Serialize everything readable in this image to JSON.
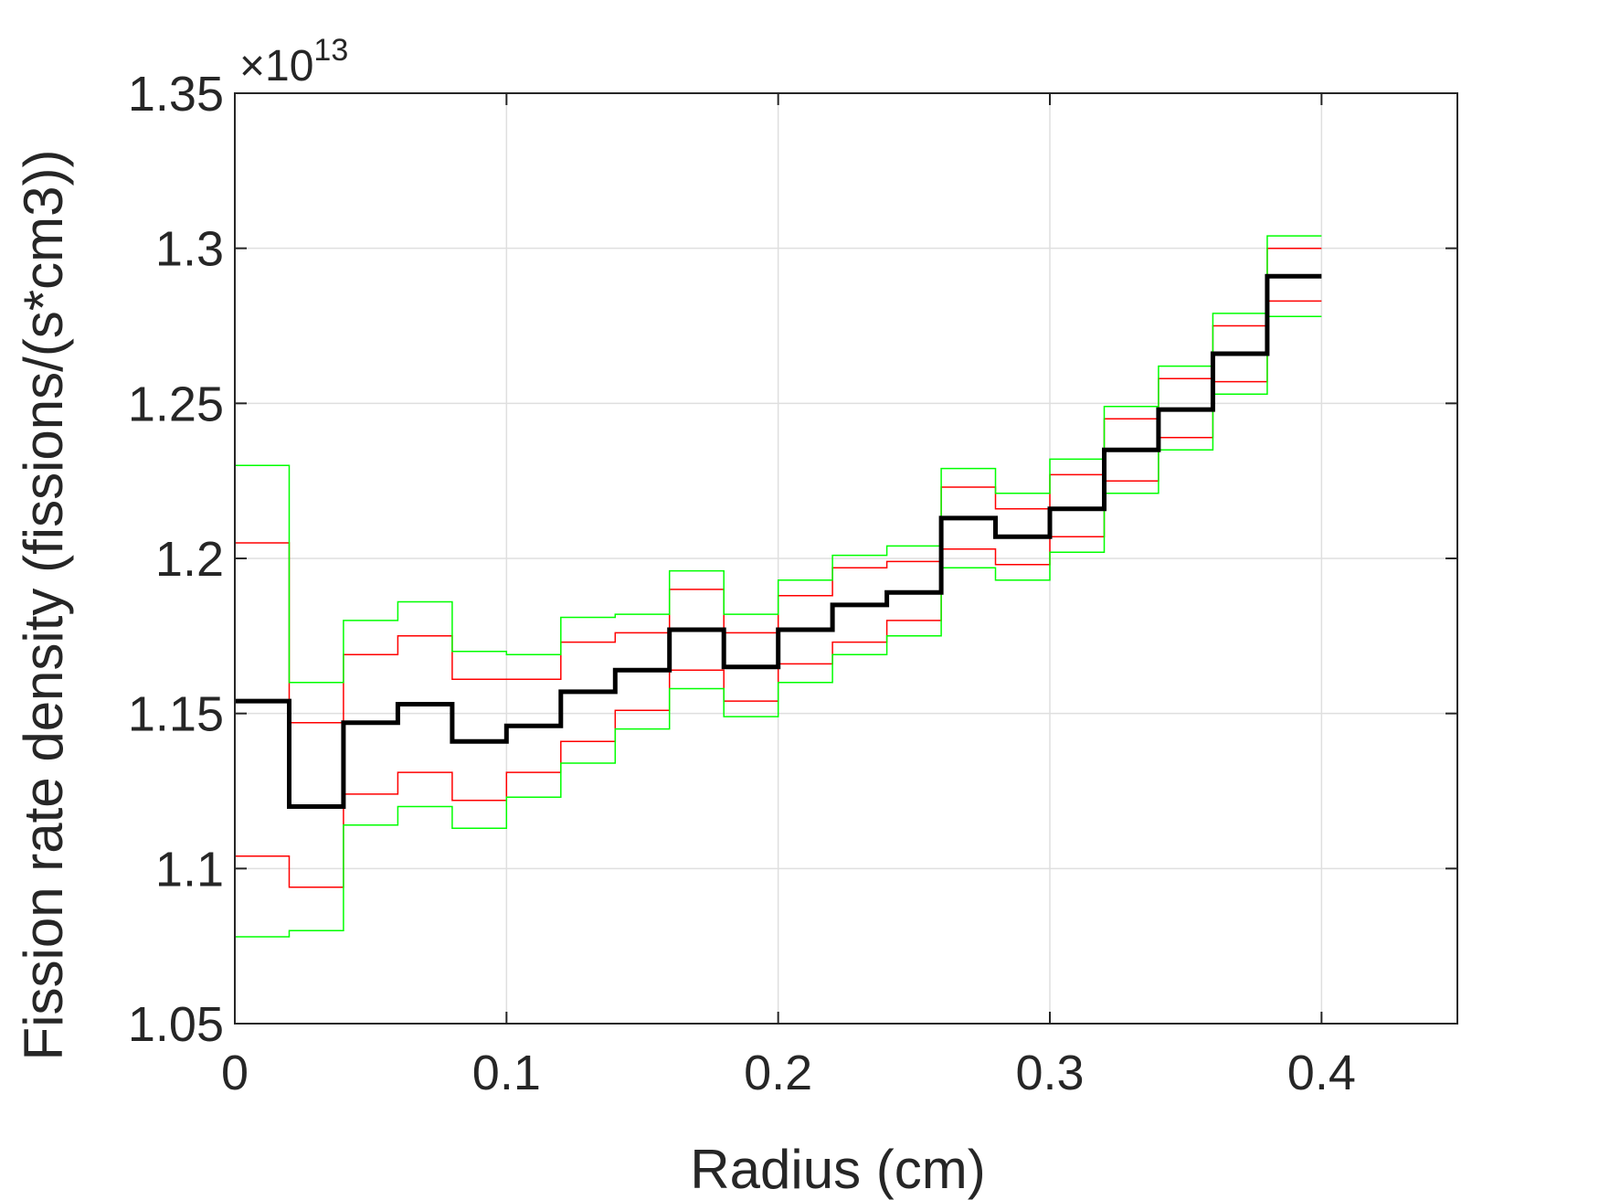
{
  "chart_data": {
    "type": "line",
    "step": true,
    "title": "",
    "xlabel": "Radius (cm)",
    "ylabel": "Fission rate density (fissions/(s*cm3))",
    "exponent_base": "×10",
    "exponent_power": "13",
    "xlim": [
      0,
      0.45
    ],
    "ylim": [
      1.05,
      1.35
    ],
    "grid": true,
    "x_ticks": [
      0,
      0.1,
      0.2,
      0.3,
      0.4
    ],
    "x_tick_labels": [
      "0",
      "0.1",
      "0.2",
      "0.3",
      "0.4"
    ],
    "y_ticks": [
      1.05,
      1.1,
      1.15,
      1.2,
      1.25,
      1.3,
      1.35
    ],
    "y_tick_labels": [
      "1.05",
      "1.1",
      "1.15",
      "1.2",
      "1.25",
      "1.3",
      "1.35"
    ],
    "bin_edges": [
      0,
      0.02,
      0.04,
      0.06,
      0.08,
      0.1,
      0.12,
      0.14,
      0.16,
      0.18,
      0.2,
      0.22,
      0.24,
      0.26,
      0.28,
      0.3,
      0.32,
      0.34,
      0.36,
      0.38,
      0.4
    ],
    "series": [
      {
        "color": "#000000",
        "width": 5,
        "values": [
          1.154,
          1.12,
          1.147,
          1.153,
          1.141,
          1.146,
          1.157,
          1.164,
          1.177,
          1.165,
          1.177,
          1.185,
          1.189,
          1.213,
          1.207,
          1.216,
          1.235,
          1.248,
          1.266,
          1.291
        ]
      },
      {
        "color": "#ff0000",
        "width": 1.5,
        "values": [
          1.205,
          1.147,
          1.169,
          1.175,
          1.161,
          1.161,
          1.173,
          1.176,
          1.19,
          1.176,
          1.188,
          1.197,
          1.199,
          1.223,
          1.216,
          1.227,
          1.245,
          1.258,
          1.275,
          1.3
        ]
      },
      {
        "color": "#ff0000",
        "width": 1.5,
        "values": [
          1.104,
          1.094,
          1.124,
          1.131,
          1.122,
          1.131,
          1.141,
          1.151,
          1.164,
          1.154,
          1.166,
          1.173,
          1.18,
          1.203,
          1.198,
          1.207,
          1.225,
          1.239,
          1.257,
          1.283
        ]
      },
      {
        "color": "#00ff00",
        "width": 1.5,
        "values": [
          1.23,
          1.16,
          1.18,
          1.186,
          1.17,
          1.169,
          1.181,
          1.182,
          1.196,
          1.182,
          1.193,
          1.201,
          1.204,
          1.229,
          1.221,
          1.232,
          1.249,
          1.262,
          1.279,
          1.304
        ]
      },
      {
        "color": "#00ff00",
        "width": 1.5,
        "values": [
          1.078,
          1.08,
          1.114,
          1.12,
          1.113,
          1.123,
          1.134,
          1.145,
          1.158,
          1.149,
          1.16,
          1.169,
          1.175,
          1.197,
          1.193,
          1.202,
          1.221,
          1.235,
          1.253,
          1.278
        ]
      }
    ]
  }
}
